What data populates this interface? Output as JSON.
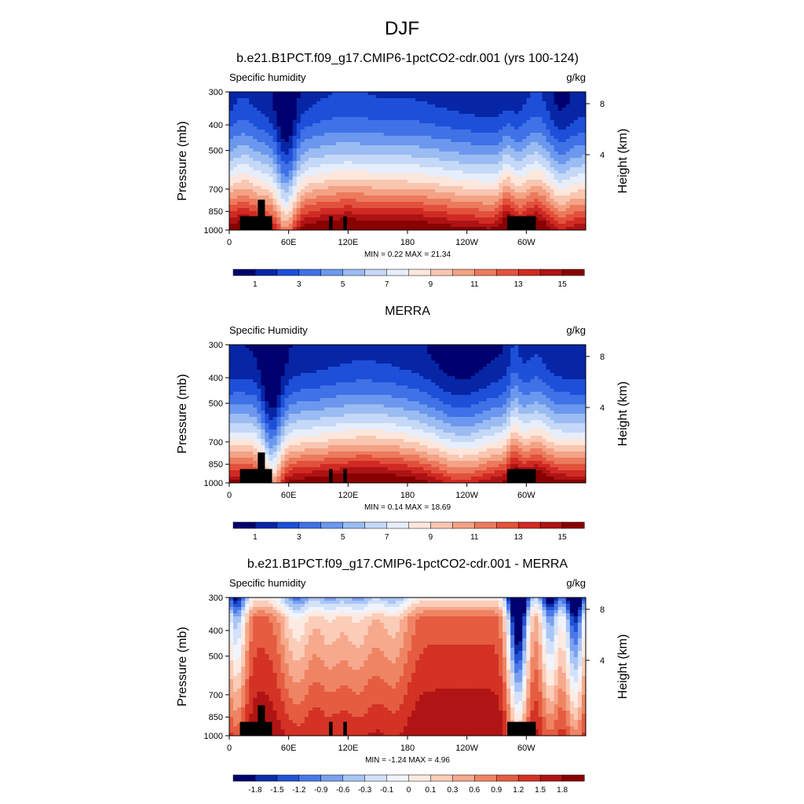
{
  "main_title": "DJF",
  "panels": [
    {
      "title": "b.e21.B1PCT.f09_g17.CMIP6-1pctCO2-cdr.001 (yrs 100-124)",
      "left_label": "Specific humidity",
      "right_label": "g/kg",
      "minmax": "MIN =   0.22  MAX =  21.34"
    },
    {
      "title": "MERRA",
      "left_label": "Specific Humidity",
      "right_label": "g/kg",
      "minmax": "MIN =   0.14  MAX =  18.69"
    },
    {
      "title": "b.e21.B1PCT.f09_g17.CMIP6-1pctCO2-cdr.001 - MERRA",
      "left_label": "Specific humidity",
      "right_label": "g/kg",
      "minmax": "MIN =  -1.24  MAX =   4.96"
    }
  ],
  "chart_data": [
    {
      "type": "heatmap",
      "title": "b.e21.B1PCT.f09_g17.CMIP6-1pctCO2-cdr.001 (yrs 100-124)",
      "xlabel": "",
      "ylabel": "Pressure (mb)",
      "y2label": "Height (km)",
      "x_ticks": [
        "0",
        "60E",
        "120E",
        "180",
        "120W",
        "60W"
      ],
      "y_ticks": [
        "300",
        "400",
        "500",
        "700",
        "850",
        "1000"
      ],
      "y2_ticks": [
        "8",
        "4"
      ],
      "units": "g/kg",
      "colorbar": {
        "labels": [
          "1",
          "3",
          "5",
          "7",
          "9",
          "11",
          "13",
          "15"
        ],
        "colors": [
          "#00006e",
          "#0626a6",
          "#1e4fd9",
          "#3f72e6",
          "#6b98ee",
          "#9bbcf2",
          "#c5d8f7",
          "#e6eefb",
          "#fde6db",
          "#f9c6b1",
          "#f3a285",
          "#ec7a5c",
          "#e2513b",
          "#d02a22",
          "#ad1315",
          "#880000"
        ]
      }
    },
    {
      "type": "heatmap",
      "title": "MERRA",
      "xlabel": "",
      "ylabel": "Pressure (mb)",
      "y2label": "Height (km)",
      "x_ticks": [
        "0",
        "60E",
        "120E",
        "180",
        "120W",
        "60W"
      ],
      "y_ticks": [
        "300",
        "400",
        "500",
        "700",
        "850",
        "1000"
      ],
      "y2_ticks": [
        "8",
        "4"
      ],
      "units": "g/kg",
      "colorbar": {
        "labels": [
          "1",
          "3",
          "5",
          "7",
          "9",
          "11",
          "13",
          "15"
        ],
        "colors": [
          "#00006e",
          "#0626a6",
          "#1e4fd9",
          "#3f72e6",
          "#6b98ee",
          "#9bbcf2",
          "#c5d8f7",
          "#e6eefb",
          "#fde6db",
          "#f9c6b1",
          "#f3a285",
          "#ec7a5c",
          "#e2513b",
          "#d02a22",
          "#ad1315",
          "#880000"
        ]
      }
    },
    {
      "type": "heatmap",
      "title": "b.e21.B1PCT.f09_g17.CMIP6-1pctCO2-cdr.001 - MERRA",
      "xlabel": "",
      "ylabel": "Pressure (mb)",
      "y2label": "Height (km)",
      "x_ticks": [
        "0",
        "60E",
        "120E",
        "180",
        "120W",
        "60W"
      ],
      "y_ticks": [
        "300",
        "400",
        "500",
        "700",
        "850",
        "1000"
      ],
      "y2_ticks": [
        "8",
        "4"
      ],
      "units": "g/kg",
      "colorbar": {
        "labels": [
          "-1.8",
          "-1.5",
          "-1.2",
          "-0.9",
          "-0.6",
          "-0.3",
          "-0.1",
          "0",
          "0.1",
          "0.3",
          "0.6",
          "0.9",
          "1.2",
          "1.5",
          "1.8"
        ],
        "colors": [
          "#00006e",
          "#0a2ea8",
          "#2352d6",
          "#4a78e8",
          "#7aa0f0",
          "#a9c5f5",
          "#d3e2fa",
          "#f0f4fc",
          "#fdeae2",
          "#fbcdb8",
          "#f6a98d",
          "#ef8463",
          "#e55c40",
          "#d33224",
          "#b01414",
          "#880000"
        ]
      }
    }
  ]
}
